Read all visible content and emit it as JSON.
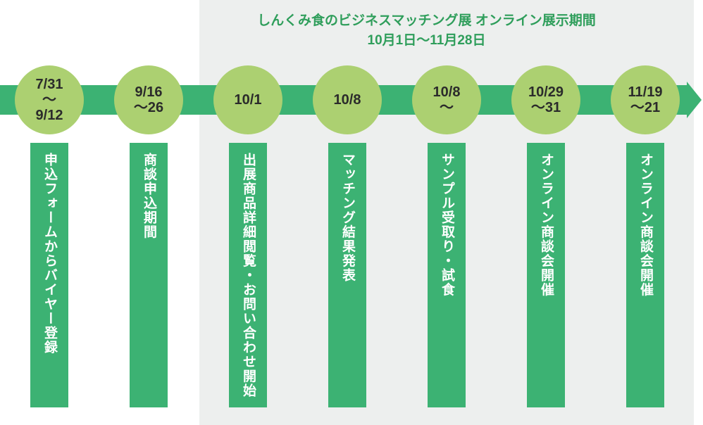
{
  "title": {
    "line1": "しんくみ食のビジネスマッチング展 オンライン展示期間",
    "line2": "10月1日〜11月28日"
  },
  "colors": {
    "band_green": "#3cb273",
    "circle_green": "#acd071",
    "title_green": "#2f9e5b",
    "panel_gray": "#edefee",
    "date_text": "#2b2b2b",
    "bar_text": "#ffffff"
  },
  "milestones": [
    {
      "date_lines": [
        "7/31",
        "〜",
        "9/12"
      ],
      "label": "申込フォームからバイヤー登録"
    },
    {
      "date_lines": [
        "9/16",
        "〜26"
      ],
      "label": "商談申込期間"
    },
    {
      "date_lines": [
        "10/1"
      ],
      "label": "出展商品詳細閲覧・お問い合わせ開始"
    },
    {
      "date_lines": [
        "10/8"
      ],
      "label": "マッチング結果発表"
    },
    {
      "date_lines": [
        "10/8",
        "〜"
      ],
      "label": "サンプル受取り・試食"
    },
    {
      "date_lines": [
        "10/29",
        "〜31"
      ],
      "label": "オンライン商談会開催"
    },
    {
      "date_lines": [
        "11/19",
        "〜21"
      ],
      "label": "オンライン商談会開催"
    }
  ]
}
